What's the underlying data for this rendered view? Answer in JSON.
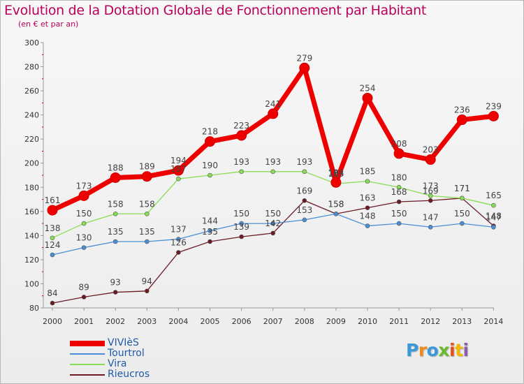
{
  "title": "Evolution de la Dotation Globale de Fonctionnement par Habitant",
  "subtitle": "(en € et par an)",
  "logo": {
    "text": "Proxiti",
    "letter_colors": [
      "#3a9ad9",
      "#f08a1c",
      "#3a9ad9",
      "#6ab92e",
      "#e94e1b",
      "#f2b705",
      "#8c5ca8"
    ]
  },
  "chart_data": {
    "type": "line",
    "x": [
      2000,
      2001,
      2002,
      2003,
      2004,
      2005,
      2006,
      2007,
      2008,
      2009,
      2010,
      2011,
      2012,
      2013,
      2014
    ],
    "ylim": [
      80,
      300
    ],
    "yticks": [
      80,
      100,
      120,
      140,
      160,
      180,
      200,
      220,
      240,
      260,
      280,
      300
    ],
    "grid": false,
    "legend_position": "bottom-left",
    "series": [
      {
        "name": "VIVIèS",
        "color": "#ee0000",
        "values": [
          161,
          173,
          188,
          189,
          194,
          218,
          223,
          241,
          279,
          184,
          254,
          208,
          203,
          236,
          239
        ],
        "labels": [
          "161",
          "173",
          "188",
          "189",
          "194",
          "218",
          "223",
          "241",
          "279",
          "184",
          "254",
          "208",
          "203",
          "236",
          "239"
        ]
      },
      {
        "name": "Tourtrol",
        "color": "#4a8fd6",
        "values": [
          124,
          130,
          135,
          135,
          137,
          144,
          150,
          150,
          153,
          158,
          148,
          150,
          147,
          150,
          147
        ],
        "labels": [
          "124",
          "130",
          "135",
          "135",
          "137",
          "144",
          "150",
          "150",
          "153",
          "158",
          "148",
          "150",
          "147",
          "150",
          "147"
        ]
      },
      {
        "name": "Vira",
        "color": "#88dd55",
        "values": [
          138,
          150,
          158,
          158,
          187,
          190,
          193,
          193,
          193,
          183,
          185,
          180,
          173,
          171,
          165
        ],
        "labels": [
          "138",
          "150",
          "158",
          "158",
          "187",
          "190",
          "193",
          "193",
          "193",
          "183",
          "185",
          "180",
          "173",
          "171",
          "165"
        ]
      },
      {
        "name": "Rieucros",
        "color": "#6b1a24",
        "values": [
          84,
          89,
          93,
          94,
          126,
          135,
          139,
          142,
          169,
          158,
          163,
          168,
          169,
          171,
          148
        ],
        "labels": [
          "84",
          "89",
          "93",
          "94",
          "126",
          "135",
          "139",
          "142",
          "169",
          "158",
          "163",
          "168",
          "169",
          "171",
          "148"
        ]
      }
    ]
  }
}
